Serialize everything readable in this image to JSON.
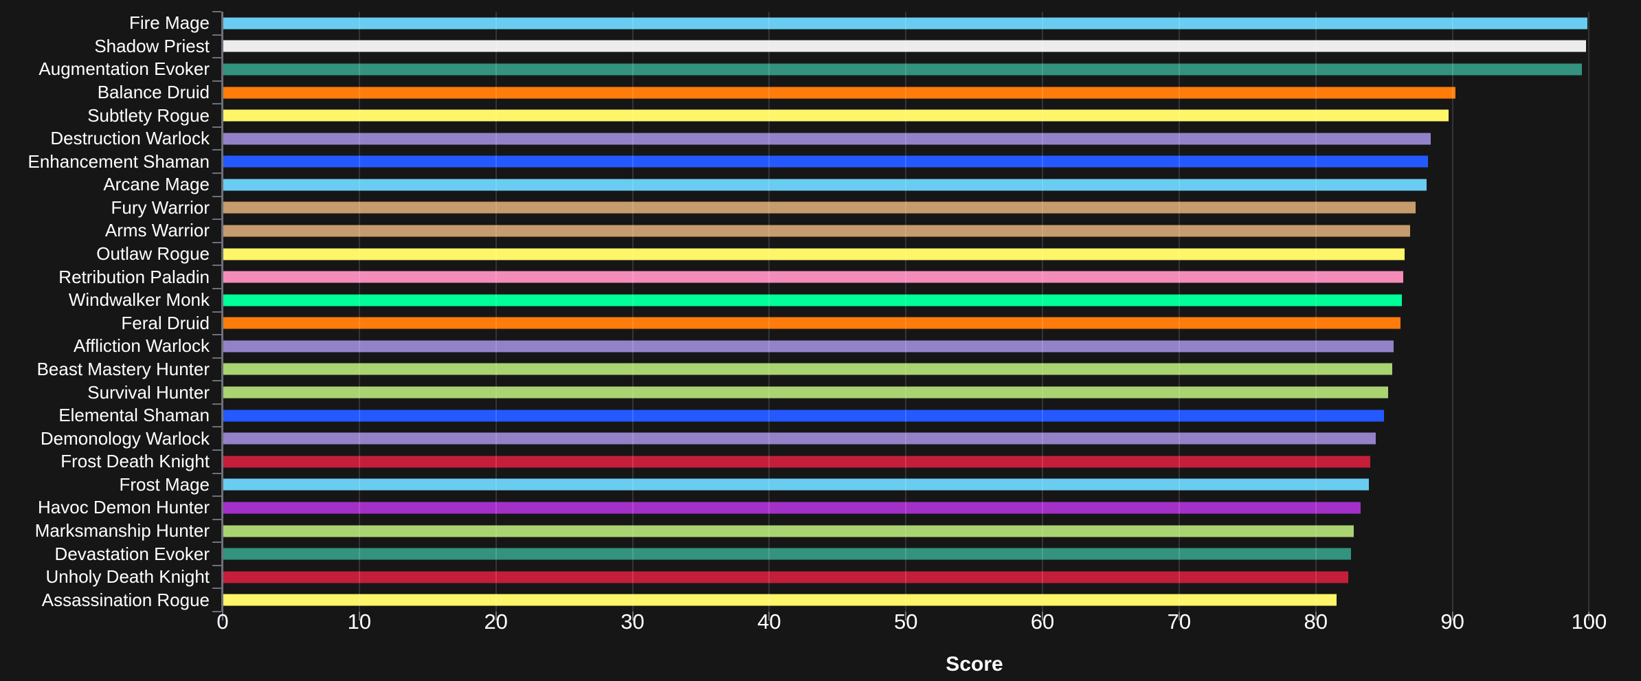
{
  "chart_data": {
    "type": "bar",
    "orientation": "horizontal",
    "title": "",
    "xlabel": "Score",
    "ylabel": "",
    "xlim": [
      0,
      103.8
    ],
    "x_ticks": [
      0,
      10,
      20,
      30,
      40,
      50,
      60,
      70,
      80,
      90,
      100
    ],
    "grid": true,
    "legend_position": "none",
    "categories": [
      "Fire Mage",
      "Shadow Priest",
      "Augmentation Evoker",
      "Balance Druid",
      "Subtlety Rogue",
      "Destruction Warlock",
      "Enhancement Shaman",
      "Arcane Mage",
      "Fury Warrior",
      "Arms Warrior",
      "Outlaw Rogue",
      "Retribution Paladin",
      "Windwalker Monk",
      "Feral Druid",
      "Affliction Warlock",
      "Beast Mastery Hunter",
      "Survival Hunter",
      "Elemental Shaman",
      "Demonology Warlock",
      "Frost Death Knight",
      "Frost Mage",
      "Havoc Demon Hunter",
      "Marksmanship Hunter",
      "Devastation Evoker",
      "Unholy Death Knight",
      "Assassination Rogue"
    ],
    "values": [
      99.9,
      99.8,
      99.5,
      90.2,
      89.7,
      88.4,
      88.2,
      88.1,
      87.3,
      86.9,
      86.5,
      86.4,
      86.3,
      86.2,
      85.7,
      85.6,
      85.3,
      85.0,
      84.4,
      84.0,
      83.9,
      83.3,
      82.8,
      82.6,
      82.4,
      81.5
    ],
    "bar_colors": [
      "#69CCF0",
      "#ECECEC",
      "#33937F",
      "#FF7C0A",
      "#FFF569",
      "#9482C9",
      "#2459FF",
      "#69CCF0",
      "#C69B6D",
      "#C69B6D",
      "#FFF569",
      "#F48CBA",
      "#00FF98",
      "#FF7C0A",
      "#9482C9",
      "#AAD372",
      "#AAD372",
      "#2459FF",
      "#9482C9",
      "#C41E3A",
      "#69CCF0",
      "#A330C9",
      "#AAD372",
      "#33937F",
      "#C41E3A",
      "#FFF569"
    ]
  },
  "colors": {
    "background": "#161616",
    "axis": "#6E7079",
    "gridline": "rgba(255,255,255,0.13)",
    "text": "#FFFFFF"
  }
}
